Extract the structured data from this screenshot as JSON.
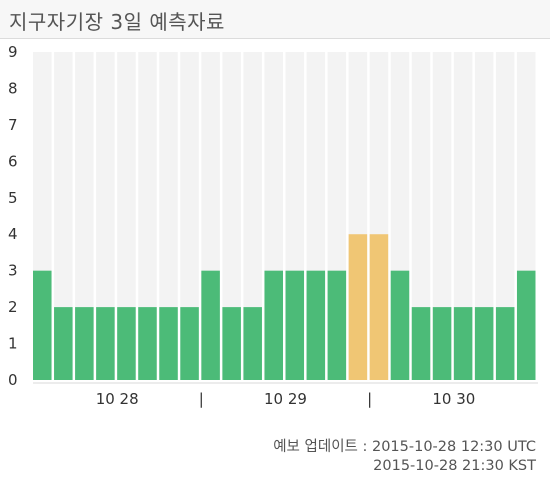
{
  "header": {
    "title": "지구자기장 3일 예측자료"
  },
  "colors": {
    "normal": "#4cbb78",
    "elevated": "#f0c674",
    "column_bg": "#f3f3f3"
  },
  "chart_data": {
    "type": "bar",
    "ylim": [
      0,
      9
    ],
    "yticks": [
      "0",
      "1",
      "2",
      "3",
      "4",
      "5",
      "6",
      "7",
      "8",
      "9"
    ],
    "values": [
      3,
      2,
      2,
      2,
      2,
      2,
      2,
      2,
      3,
      2,
      2,
      3,
      3,
      3,
      3,
      4,
      4,
      3,
      2,
      2,
      2,
      2,
      2,
      3
    ],
    "day_labels": [
      "10 28",
      "10 29",
      "10 30"
    ],
    "separator_label": "|",
    "grid": false,
    "legend": "none"
  },
  "footer": {
    "line1": "예보 업데이트 : 2015-10-28 12:30 UTC",
    "line2": "2015-10-28 21:30 KST"
  }
}
